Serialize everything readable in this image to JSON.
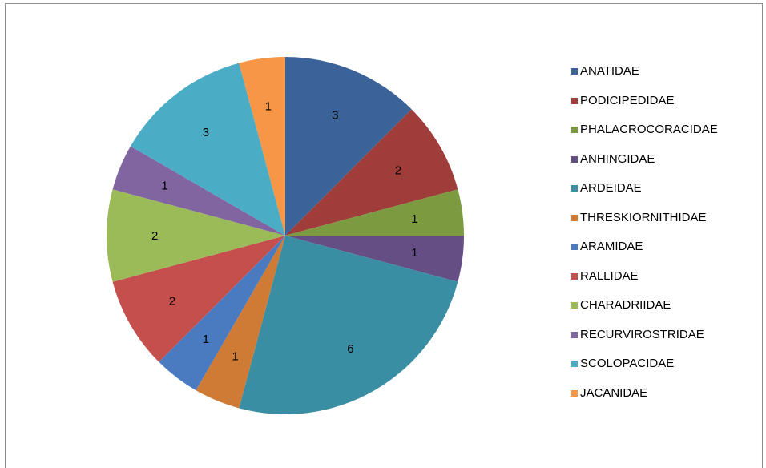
{
  "chart_data": {
    "type": "pie",
    "categories": [
      "ANATIDAE",
      "PODICIPEDIDAE",
      "PHALACROCORACIDAE",
      "ANHINGIDAE",
      "ARDEIDAE",
      "THRESKIORNITHIDAE",
      "ARAMIDAE",
      "RALLIDAE",
      "CHARADRIIDAE",
      "RECURVIROSTRIDAE",
      "SCOLOPACIDAE",
      "JACANIDAE"
    ],
    "values": [
      3,
      2,
      1,
      1,
      6,
      1,
      1,
      2,
      2,
      1,
      3,
      1
    ],
    "data_labels": [
      "3",
      "2",
      "1",
      "1",
      "6",
      "1",
      "1",
      "2",
      "2",
      "1",
      "3",
      "1"
    ],
    "colors": [
      "#3c6399",
      "#9e3d3a",
      "#7c9a40",
      "#654e84",
      "#3a8ea3",
      "#cf7a35",
      "#4a7ac0",
      "#c44f4c",
      "#9bbb59",
      "#8065a1",
      "#4bacc6",
      "#f79646"
    ],
    "legend_position": "right",
    "title": ""
  }
}
